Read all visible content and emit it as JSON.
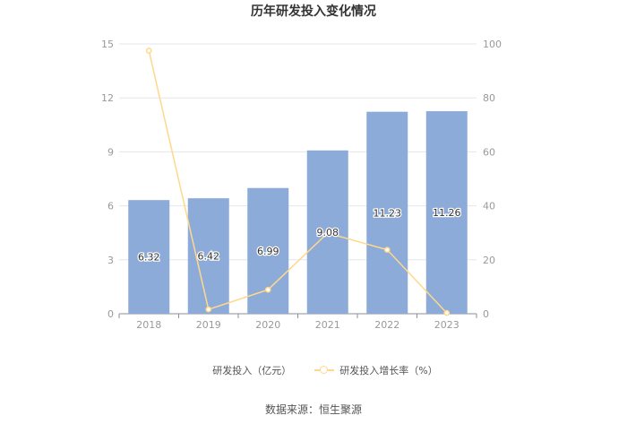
{
  "title": "历年研发投入变化情况",
  "source": "数据来源：恒生聚源",
  "colors": {
    "bar": "#8dabd9",
    "line": "#ffd88a",
    "grid": "#e3e6ee",
    "axis": "#999999"
  },
  "chart_data": {
    "type": "bar",
    "categories": [
      "2018",
      "2019",
      "2020",
      "2021",
      "2022",
      "2023"
    ],
    "series": [
      {
        "name": "研发投入（亿元）",
        "type": "bar",
        "axis": "left",
        "values": [
          6.32,
          6.42,
          6.99,
          9.08,
          11.23,
          11.26
        ],
        "labels": [
          "6.32",
          "6.42",
          "6.99",
          "9.08",
          "11.23",
          "11.26"
        ]
      },
      {
        "name": "研发投入增长率（%）",
        "type": "line",
        "axis": "right",
        "values": [
          97.5,
          1.6,
          8.9,
          29.9,
          23.7,
          0.3
        ]
      }
    ],
    "y_left": {
      "min": 0,
      "max": 15,
      "ticks": [
        "0",
        "3",
        "6",
        "9",
        "12",
        "15"
      ]
    },
    "y_right": {
      "min": 0,
      "max": 100,
      "ticks": [
        "0",
        "20",
        "40",
        "60",
        "80",
        "100"
      ]
    },
    "grid": true,
    "legend_position": "bottom"
  }
}
